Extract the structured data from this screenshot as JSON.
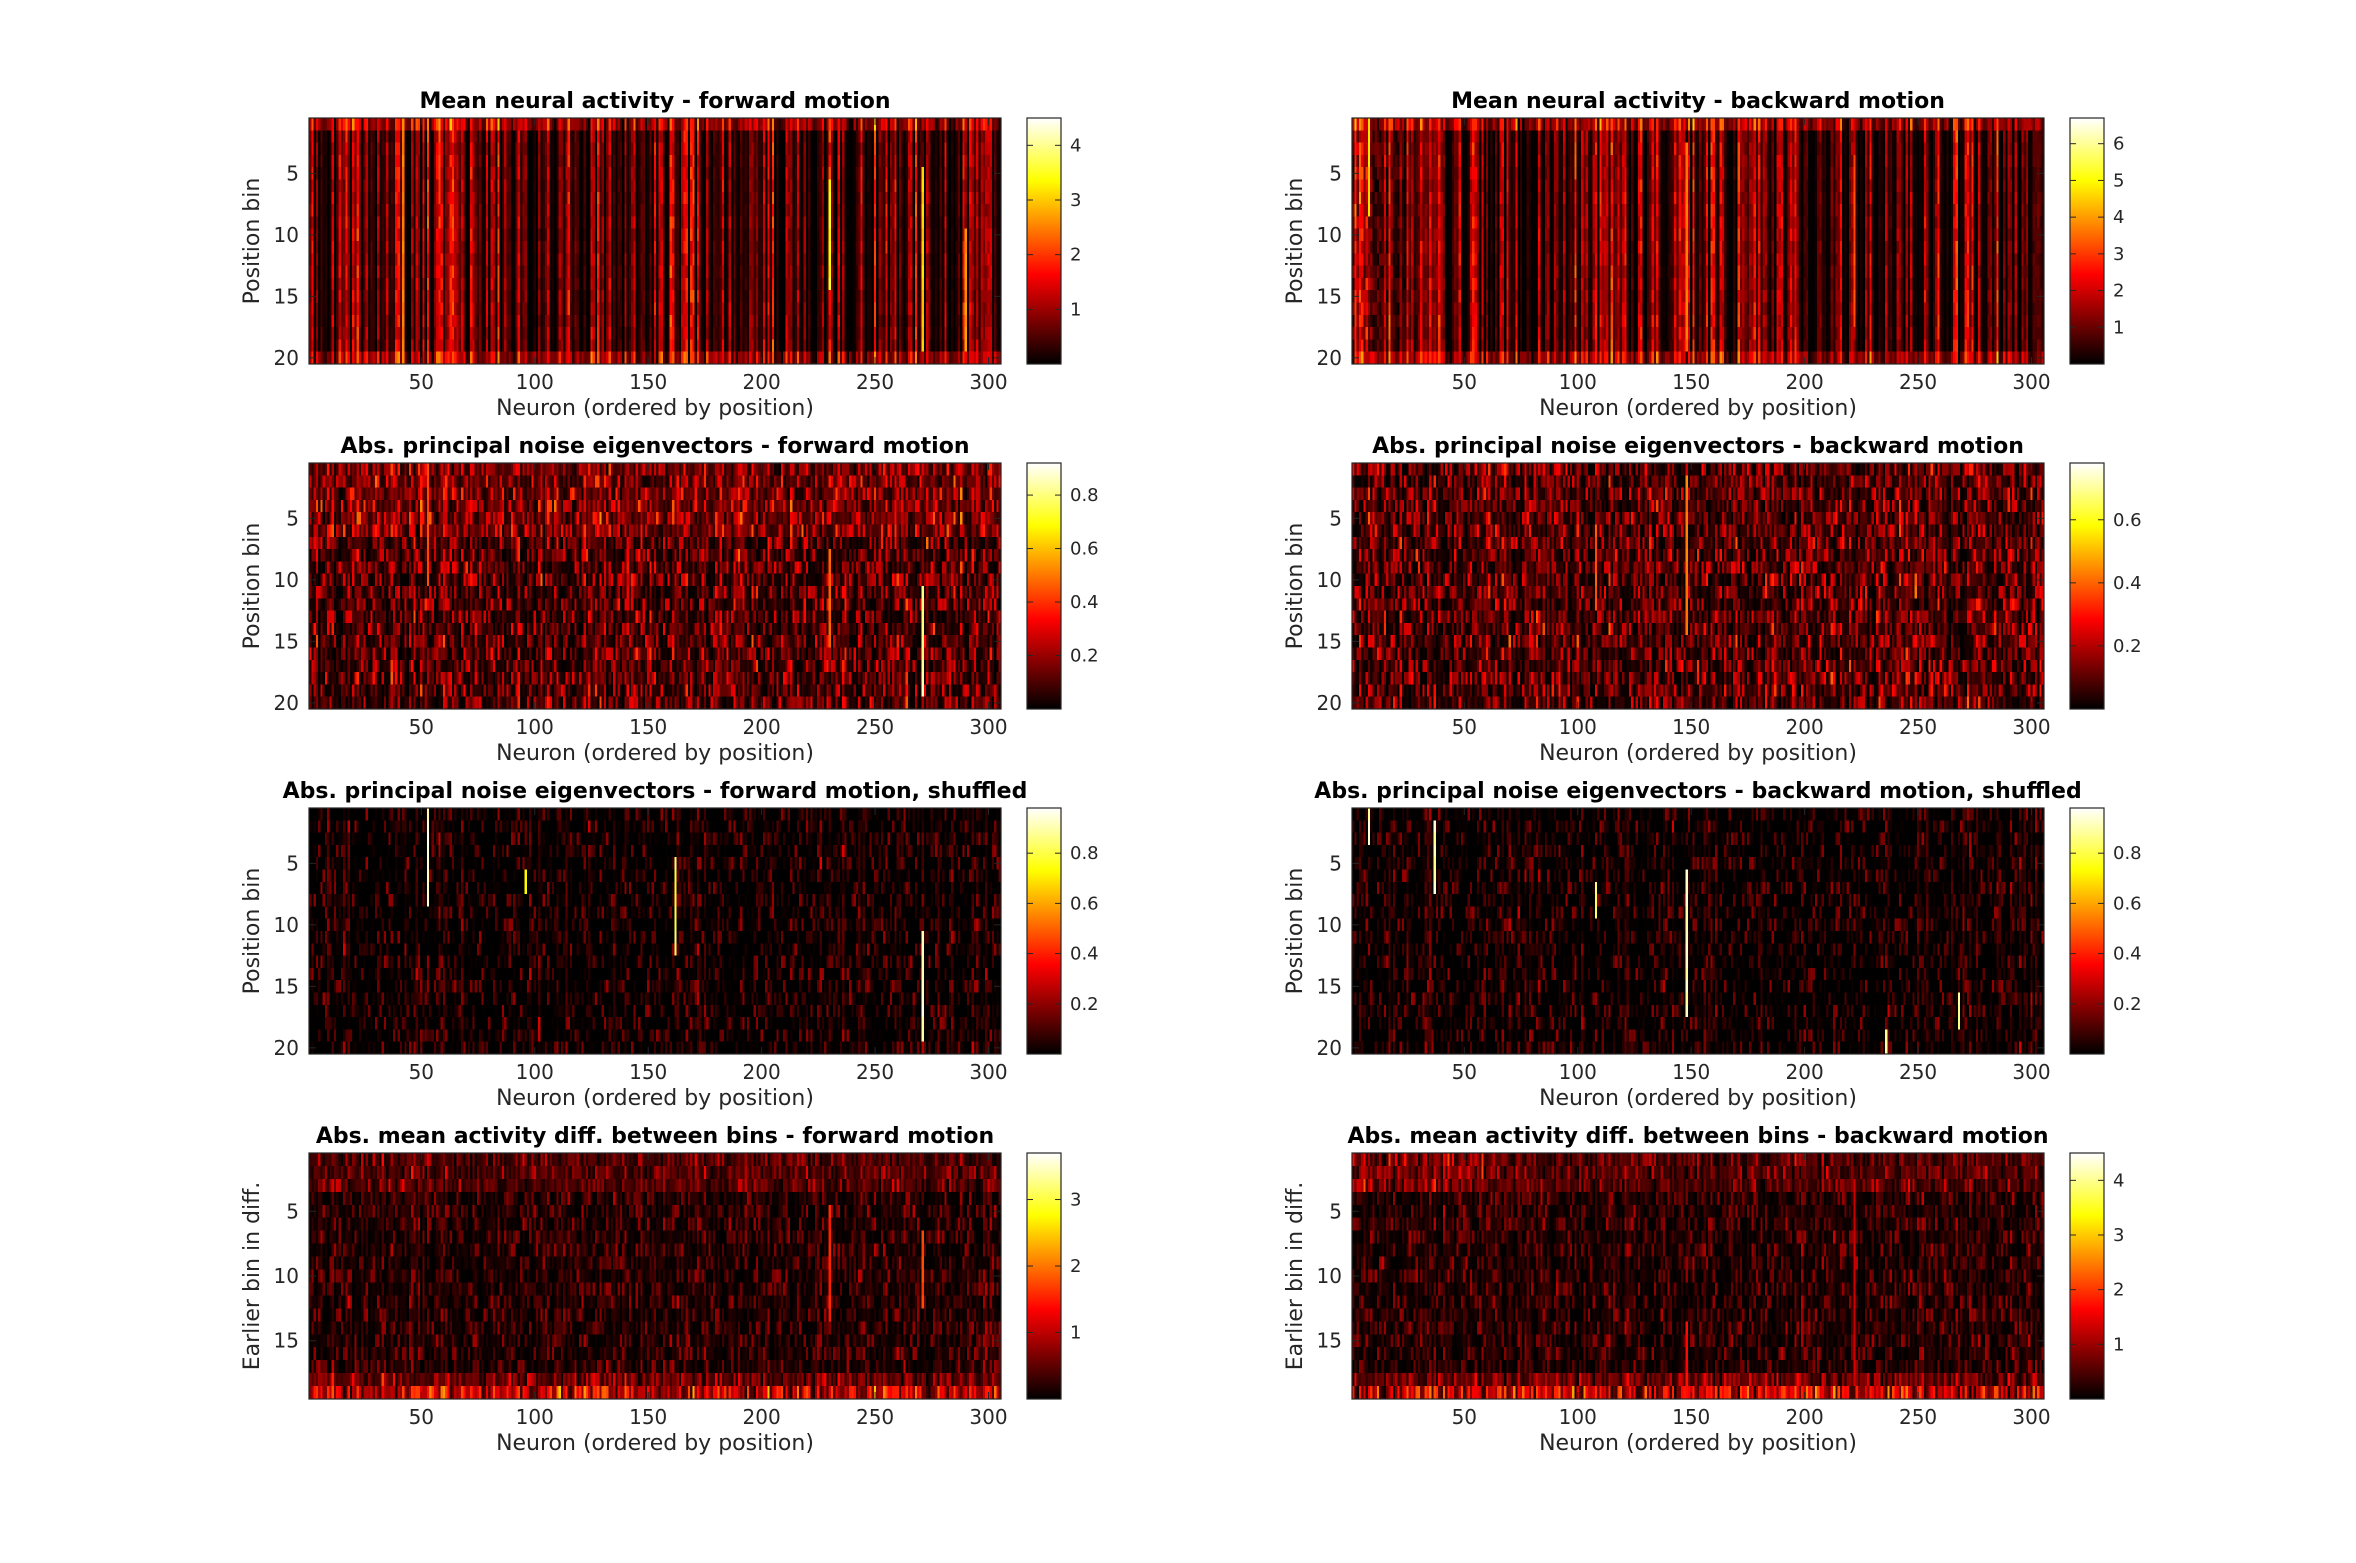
{
  "figure": {
    "colormap": "hot",
    "colormap_stops": [
      "#000000",
      "#ff0000",
      "#ffff00",
      "#ffffff"
    ],
    "background": "#ffffff"
  },
  "chart_data": [
    {
      "type": "heatmap",
      "title": "Mean neural activity - forward motion",
      "xlabel": "Neuron (ordered by position)",
      "ylabel": "Position bin",
      "xlim": [
        0.5,
        305.5
      ],
      "ylim": [
        0.5,
        20.5
      ],
      "n_cols": 305,
      "n_rows": 20,
      "xticks": [
        "50",
        "100",
        "150",
        "200",
        "250",
        "300"
      ],
      "yticks": [
        "5",
        "10",
        "15",
        "20"
      ],
      "clim": [
        0,
        4.5
      ],
      "cbticks": [
        "1",
        "2",
        "3",
        "4"
      ],
      "pattern": "vertical streaks of activity across all positions, brightest at neurons ~230, 270, 290 and in the first and last position bins",
      "highlights": [
        {
          "neuron": 230,
          "from_bin": 6,
          "to_bin": 14,
          "value": 3.6
        },
        {
          "neuron": 271,
          "from_bin": 5,
          "to_bin": 19,
          "value": 3.2
        },
        {
          "neuron": 290,
          "from_bin": 10,
          "to_bin": 19,
          "value": 2.8
        },
        {
          "neuron": 42,
          "from_bin": 1,
          "to_bin": 20,
          "value": 2.6
        }
      ]
    },
    {
      "type": "heatmap",
      "title": "Mean neural activity - backward motion",
      "xlabel": "Neuron (ordered by position)",
      "ylabel": "Position bin",
      "xlim": [
        0.5,
        305.5
      ],
      "ylim": [
        0.5,
        20.5
      ],
      "n_cols": 305,
      "n_rows": 20,
      "xticks": [
        "50",
        "100",
        "150",
        "200",
        "250",
        "300"
      ],
      "yticks": [
        "5",
        "10",
        "15",
        "20"
      ],
      "clim": [
        0,
        6.7
      ],
      "cbticks": [
        "1",
        "2",
        "3",
        "4",
        "5",
        "6"
      ],
      "pattern": "vertical streaks of activity, brightest for the first neurons and in the last position bins",
      "highlights": [
        {
          "neuron": 8,
          "from_bin": 1,
          "to_bin": 8,
          "value": 4.8
        },
        {
          "neuron": 148,
          "from_bin": 3,
          "to_bin": 19,
          "value": 3.8
        },
        {
          "neuron": 222,
          "from_bin": 4,
          "to_bin": 17,
          "value": 3.4
        }
      ]
    },
    {
      "type": "heatmap",
      "title": "Abs. principal noise eigenvectors - forward motion",
      "xlabel": "Neuron (ordered by position)",
      "ylabel": "Position bin",
      "xlim": [
        0.5,
        305.5
      ],
      "ylim": [
        0.5,
        20.5
      ],
      "n_cols": 305,
      "n_rows": 20,
      "xticks": [
        "50",
        "100",
        "150",
        "200",
        "250",
        "300"
      ],
      "yticks": [
        "5",
        "10",
        "15",
        "20"
      ],
      "clim": [
        0,
        0.92
      ],
      "cbticks": [
        "0.2",
        "0.4",
        "0.6",
        "0.8"
      ],
      "pattern": "moderate scattered weights, denser in the first bins; a bright stripe near neuron 270",
      "highlights": [
        {
          "neuron": 271,
          "from_bin": 11,
          "to_bin": 19,
          "value": 0.88
        },
        {
          "neuron": 230,
          "from_bin": 8,
          "to_bin": 15,
          "value": 0.5
        },
        {
          "neuron": 53,
          "from_bin": 1,
          "to_bin": 10,
          "value": 0.45
        }
      ]
    },
    {
      "type": "heatmap",
      "title": "Abs. principal noise eigenvectors - backward motion",
      "xlabel": "Neuron (ordered by position)",
      "ylabel": "Position bin",
      "xlim": [
        0.5,
        305.5
      ],
      "ylim": [
        0.5,
        20.5
      ],
      "n_cols": 305,
      "n_rows": 20,
      "xticks": [
        "50",
        "100",
        "150",
        "200",
        "250",
        "300"
      ],
      "yticks": [
        "5",
        "10",
        "15",
        "20"
      ],
      "clim": [
        0,
        0.78
      ],
      "cbticks": [
        "0.2",
        "0.4",
        "0.6"
      ],
      "pattern": "moderate scattered weights spread over all neurons and bins",
      "highlights": [
        {
          "neuron": 148,
          "from_bin": 2,
          "to_bin": 14,
          "value": 0.45
        },
        {
          "neuron": 108,
          "from_bin": 6,
          "to_bin": 12,
          "value": 0.4
        }
      ]
    },
    {
      "type": "heatmap",
      "title": "Abs. principal noise eigenvectors - forward motion, shuffled",
      "xlabel": "Neuron (ordered by position)",
      "ylabel": "Position bin",
      "xlim": [
        0.5,
        305.5
      ],
      "ylim": [
        0.5,
        20.5
      ],
      "n_cols": 305,
      "n_rows": 20,
      "xticks": [
        "50",
        "100",
        "150",
        "200",
        "250",
        "300"
      ],
      "yticks": [
        "5",
        "10",
        "15",
        "20"
      ],
      "clim": [
        0,
        0.98
      ],
      "cbticks": [
        "0.2",
        "0.4",
        "0.6",
        "0.8"
      ],
      "pattern": "mostly near zero with a few isolated strong single-neuron stripes",
      "highlights": [
        {
          "neuron": 53,
          "from_bin": 1,
          "to_bin": 8,
          "value": 0.97
        },
        {
          "neuron": 162,
          "from_bin": 5,
          "to_bin": 12,
          "value": 0.85
        },
        {
          "neuron": 271,
          "from_bin": 11,
          "to_bin": 19,
          "value": 0.98
        },
        {
          "neuron": 96,
          "from_bin": 6,
          "to_bin": 7,
          "value": 0.8
        }
      ]
    },
    {
      "type": "heatmap",
      "title": "Abs. principal noise eigenvectors - backward motion, shuffled",
      "xlabel": "Neuron (ordered by position)",
      "ylabel": "Position bin",
      "xlim": [
        0.5,
        305.5
      ],
      "ylim": [
        0.5,
        20.5
      ],
      "n_cols": 305,
      "n_rows": 20,
      "xticks": [
        "50",
        "100",
        "150",
        "200",
        "250",
        "300"
      ],
      "yticks": [
        "5",
        "10",
        "15",
        "20"
      ],
      "clim": [
        0,
        0.98
      ],
      "cbticks": [
        "0.2",
        "0.4",
        "0.6",
        "0.8"
      ],
      "pattern": "mostly near zero with a few isolated strong single-neuron stripes",
      "highlights": [
        {
          "neuron": 8,
          "from_bin": 1,
          "to_bin": 3,
          "value": 0.95
        },
        {
          "neuron": 37,
          "from_bin": 2,
          "to_bin": 7,
          "value": 0.95
        },
        {
          "neuron": 148,
          "from_bin": 6,
          "to_bin": 17,
          "value": 0.97
        },
        {
          "neuron": 108,
          "from_bin": 7,
          "to_bin": 9,
          "value": 0.9
        },
        {
          "neuron": 236,
          "from_bin": 19,
          "to_bin": 20,
          "value": 0.95
        },
        {
          "neuron": 268,
          "from_bin": 16,
          "to_bin": 18,
          "value": 0.9
        }
      ]
    },
    {
      "type": "heatmap",
      "title": "Abs. mean activity diff. between bins - forward motion",
      "xlabel": "Neuron (ordered by position)",
      "ylabel": "Earlier bin in diff.",
      "xlim": [
        0.5,
        305.5
      ],
      "ylim": [
        0.5,
        19.5
      ],
      "n_cols": 305,
      "n_rows": 19,
      "xticks": [
        "50",
        "100",
        "150",
        "200",
        "250",
        "300"
      ],
      "yticks": [
        "5",
        "10",
        "15"
      ],
      "clim": [
        0,
        3.7
      ],
      "cbticks": [
        "1",
        "2",
        "3"
      ],
      "pattern": "low values overall, larger differences in the first bins and strongly in the last bin",
      "highlights": [
        {
          "neuron": 230,
          "from_bin": 5,
          "to_bin": 13,
          "value": 1.6
        },
        {
          "neuron": 271,
          "from_bin": 7,
          "to_bin": 12,
          "value": 1.8
        }
      ]
    },
    {
      "type": "heatmap",
      "title": "Abs. mean activity diff. between bins - backward motion",
      "xlabel": "Neuron (ordered by position)",
      "ylabel": "Earlier bin in diff.",
      "xlim": [
        0.5,
        305.5
      ],
      "ylim": [
        0.5,
        19.5
      ],
      "n_cols": 305,
      "n_rows": 19,
      "xticks": [
        "50",
        "100",
        "150",
        "200",
        "250",
        "300"
      ],
      "yticks": [
        "5",
        "10",
        "15"
      ],
      "clim": [
        0,
        4.5
      ],
      "cbticks": [
        "1",
        "2",
        "3",
        "4"
      ],
      "pattern": "low values overall, larger differences in the first bins for the first neurons and in the last bin",
      "highlights": [
        {
          "neuron": 222,
          "from_bin": 3,
          "to_bin": 18,
          "value": 1.4
        },
        {
          "neuron": 148,
          "from_bin": 14,
          "to_bin": 19,
          "value": 1.8
        }
      ]
    }
  ]
}
